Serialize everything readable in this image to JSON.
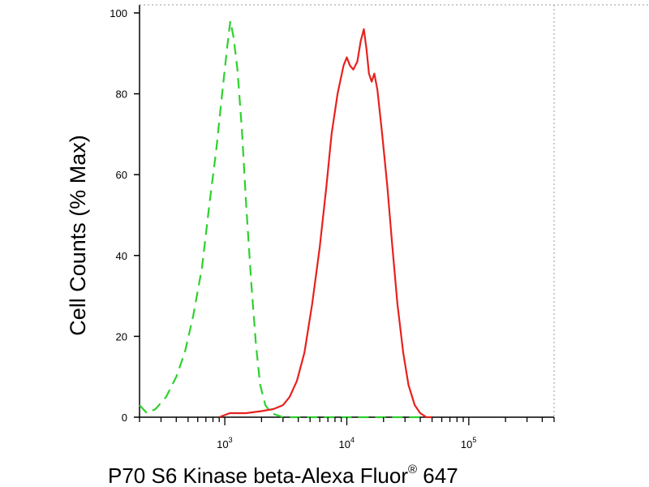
{
  "chart_data": {
    "type": "line",
    "xlabel": "P70 S6 Kinase beta-Alexa Fluor",
    "xlabel_superscript": "®",
    "xlabel_suffix": " 647",
    "ylabel": "Cell Counts (% Max)",
    "x_scale": "log",
    "xlim": [
      200,
      500000
    ],
    "ylim": [
      0,
      102
    ],
    "x_ticks": [
      {
        "base": "10",
        "exp": "3",
        "value": 1000
      },
      {
        "base": "10",
        "exp": "4",
        "value": 10000
      },
      {
        "base": "10",
        "exp": "5",
        "value": 100000
      }
    ],
    "y_ticks": [
      {
        "label": "0",
        "value": 0
      },
      {
        "label": "20",
        "value": 20
      },
      {
        "label": "40",
        "value": 40
      },
      {
        "label": "60",
        "value": 60
      },
      {
        "label": "80",
        "value": 80
      },
      {
        "label": "100",
        "value": 100
      }
    ],
    "grid": false,
    "series": [
      {
        "color": "#2ed12e",
        "dash": "dashed",
        "points": [
          [
            200,
            3
          ],
          [
            230,
            1
          ],
          [
            270,
            2
          ],
          [
            330,
            5
          ],
          [
            400,
            10
          ],
          [
            470,
            16
          ],
          [
            550,
            25
          ],
          [
            650,
            37
          ],
          [
            750,
            53
          ],
          [
            850,
            66
          ],
          [
            950,
            80
          ],
          [
            1050,
            92
          ],
          [
            1110,
            98
          ],
          [
            1180,
            94
          ],
          [
            1270,
            86
          ],
          [
            1380,
            71
          ],
          [
            1500,
            52
          ],
          [
            1650,
            33
          ],
          [
            1800,
            18
          ],
          [
            1950,
            8
          ],
          [
            2150,
            3
          ],
          [
            2400,
            1
          ],
          [
            3000,
            0
          ],
          [
            45000,
            0
          ]
        ]
      },
      {
        "color": "#e8211d",
        "dash": "solid",
        "points": [
          [
            900,
            0
          ],
          [
            1100,
            1
          ],
          [
            1500,
            1
          ],
          [
            2000,
            1.5
          ],
          [
            2500,
            2
          ],
          [
            3000,
            3
          ],
          [
            3400,
            5
          ],
          [
            3900,
            9
          ],
          [
            4500,
            16
          ],
          [
            5200,
            28
          ],
          [
            6000,
            42
          ],
          [
            6800,
            57
          ],
          [
            7500,
            70
          ],
          [
            8400,
            80
          ],
          [
            9400,
            87
          ],
          [
            10000,
            89
          ],
          [
            10600,
            87
          ],
          [
            11300,
            86
          ],
          [
            12200,
            88
          ],
          [
            13000,
            93
          ],
          [
            13800,
            96
          ],
          [
            14500,
            91
          ],
          [
            15200,
            85
          ],
          [
            16000,
            83
          ],
          [
            16800,
            85
          ],
          [
            17800,
            81
          ],
          [
            19500,
            70
          ],
          [
            21500,
            57
          ],
          [
            23500,
            43
          ],
          [
            26000,
            28
          ],
          [
            29000,
            16
          ],
          [
            32000,
            8
          ],
          [
            36000,
            3
          ],
          [
            40000,
            1
          ],
          [
            45000,
            0
          ],
          [
            50000,
            0
          ]
        ]
      }
    ]
  }
}
